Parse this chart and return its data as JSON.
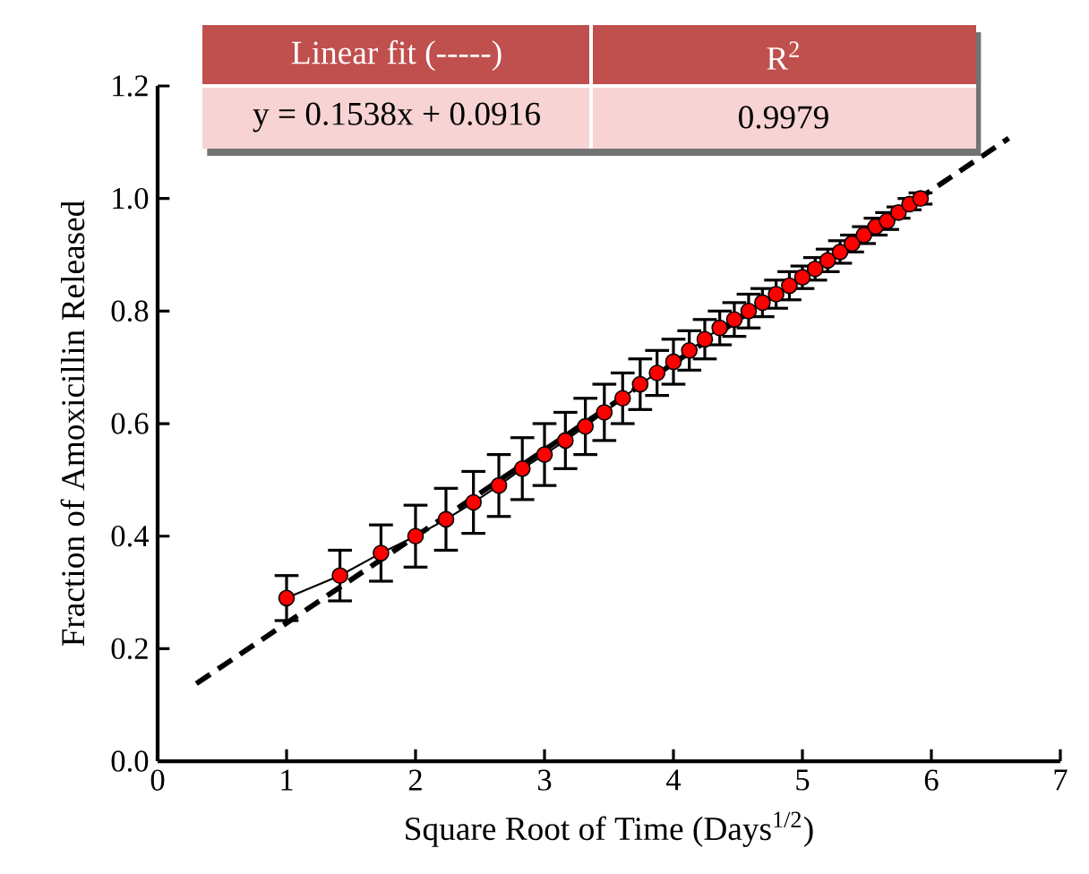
{
  "chart_data": {
    "type": "line",
    "xlabel": "Square Root of Time (Days$^{1/2}$)",
    "ylabel": "Fraction of Amoxicillin Released",
    "annotations": [
      "Linear fit (-----)",
      "R$^{2}$",
      "y = 0.1538x + 0.0916",
      "0.9979"
    ],
    "xlim": [
      0,
      7
    ],
    "ylim": [
      0,
      1.2
    ],
    "xticks": [
      0,
      1,
      2,
      3,
      4,
      5,
      6,
      7
    ],
    "yticks": [
      {
        "value": 0,
        "label": "0.0"
      },
      {
        "value": 0.2,
        "label": "0.2"
      },
      {
        "value": 0.4,
        "label": "0.4"
      },
      {
        "value": 0.6,
        "label": "0.6"
      },
      {
        "value": 0.8,
        "label": "0.8"
      },
      {
        "value": 1.0,
        "label": "1.0"
      },
      {
        "value": 1.2,
        "label": "1.2"
      }
    ],
    "series": [
      {
        "color": "#ff0000",
        "marker": "circle",
        "line_style": "solid",
        "x": [
          1,
          1.414,
          1.732,
          2,
          2.236,
          2.449,
          2.646,
          2.828,
          3,
          3.162,
          3.317,
          3.464,
          3.606,
          3.742,
          3.873,
          4,
          4.123,
          4.243,
          4.359,
          4.472,
          4.583,
          4.69,
          4.796,
          4.899,
          5,
          5.099,
          5.196,
          5.292,
          5.385,
          5.477,
          5.568,
          5.657,
          5.745,
          5.831,
          5.916
        ],
        "values": [
          0.29,
          0.33,
          0.37,
          0.4,
          0.43,
          0.46,
          0.49,
          0.52,
          0.545,
          0.57,
          0.595,
          0.62,
          0.645,
          0.67,
          0.69,
          0.71,
          0.73,
          0.75,
          0.77,
          0.785,
          0.8,
          0.815,
          0.83,
          0.845,
          0.86,
          0.875,
          0.89,
          0.905,
          0.92,
          0.935,
          0.95,
          0.96,
          0.975,
          0.99,
          1.0
        ],
        "errors": [
          0.04,
          0.045,
          0.05,
          0.055,
          0.055,
          0.055,
          0.055,
          0.055,
          0.055,
          0.05,
          0.05,
          0.05,
          0.045,
          0.045,
          0.04,
          0.04,
          0.035,
          0.035,
          0.03,
          0.03,
          0.03,
          0.025,
          0.025,
          0.025,
          0.02,
          0.02,
          0.02,
          0.02,
          0.015,
          0.015,
          0.015,
          0.015,
          0.01,
          0.01,
          0.01
        ]
      },
      {
        "color": "#000000",
        "marker": "none",
        "line_style": "dashed",
        "x": [
          0.3,
          6.6
        ],
        "values": [
          0.138,
          1.107
        ]
      }
    ]
  }
}
